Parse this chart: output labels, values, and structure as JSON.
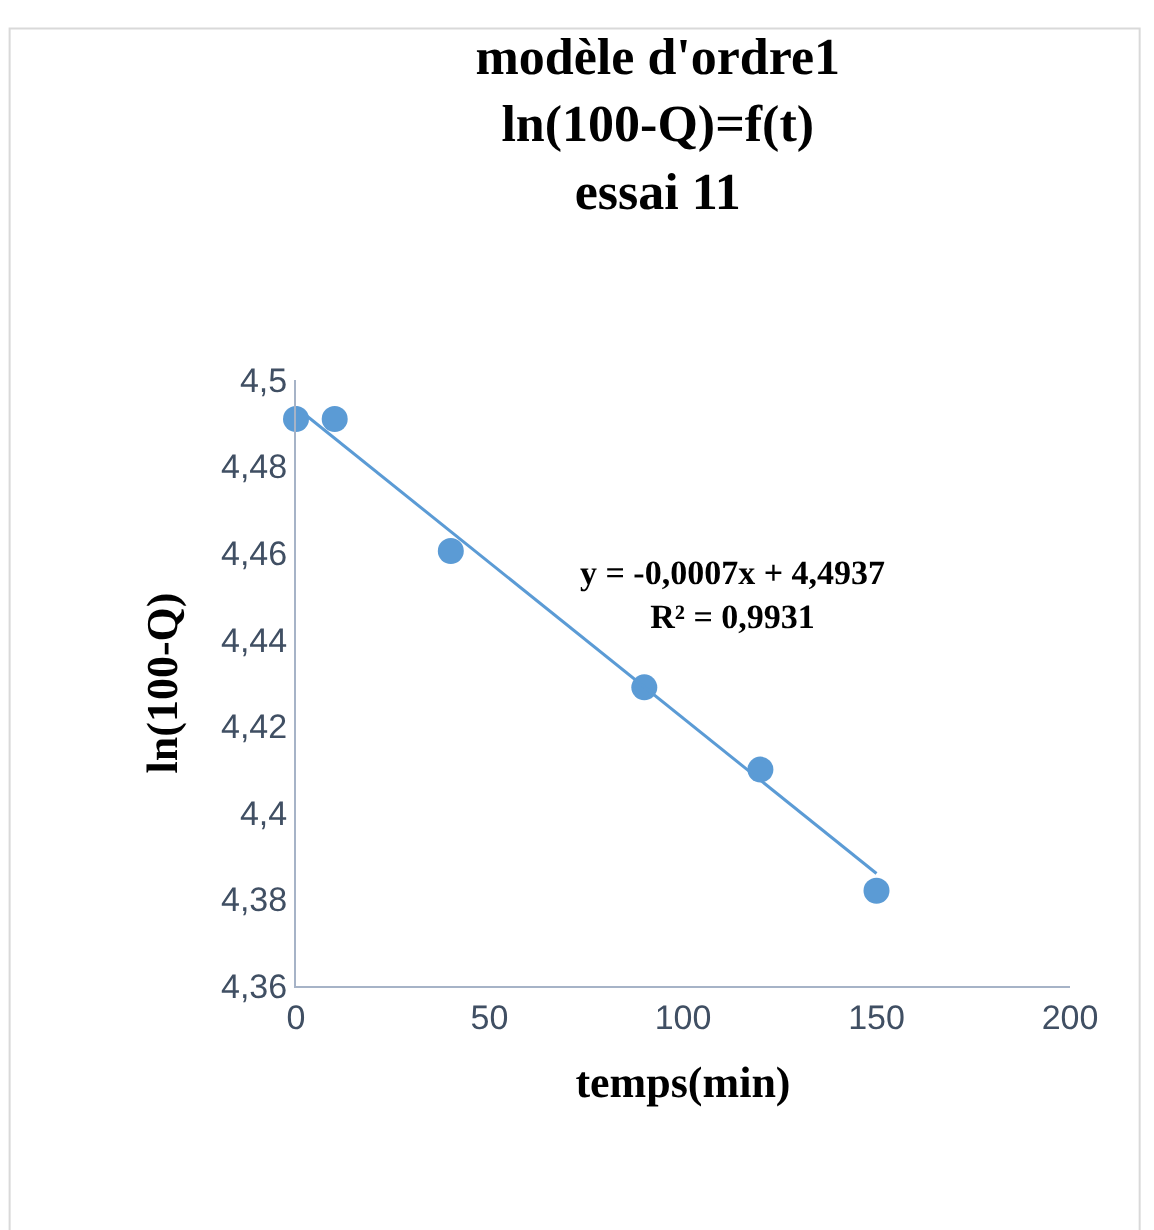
{
  "chart_data": {
    "type": "scatter",
    "title": "modèle d'ordre1\nln(100-Q)=f(t)\nessai 11",
    "xlabel": "temps(min)",
    "ylabel": "ln(100-Q)",
    "x": [
      0,
      10,
      40,
      90,
      120,
      150
    ],
    "series": [
      {
        "color": "#5b9bd5",
        "values": [
          4.491,
          4.491,
          4.4605,
          4.429,
          4.41,
          4.382
        ],
        "marker": "circle"
      },
      {
        "type": "line",
        "color": "#5b9bd5",
        "x": [
          0,
          150
        ],
        "values": [
          4.4937,
          4.386
        ],
        "marker": "none",
        "line_style": "solid"
      }
    ],
    "annotations": [
      "y = -0,0007x + 4,4937\nR² = 0,9931"
    ],
    "xlim": [
      0,
      200
    ],
    "xticks": [
      0,
      50,
      100,
      150,
      200
    ],
    "ylim": [
      4.36,
      4.5
    ],
    "yticks": [
      {
        "value": 4.36,
        "label": "4,36"
      },
      {
        "value": 4.38,
        "label": "4,38"
      },
      {
        "value": 4.4,
        "label": "4,4"
      },
      {
        "value": 4.42,
        "label": "4,42"
      },
      {
        "value": 4.44,
        "label": "4,44"
      },
      {
        "value": 4.46,
        "label": "4,46"
      },
      {
        "value": 4.48,
        "label": "4,48"
      },
      {
        "value": 4.5,
        "label": "4,5"
      }
    ]
  }
}
